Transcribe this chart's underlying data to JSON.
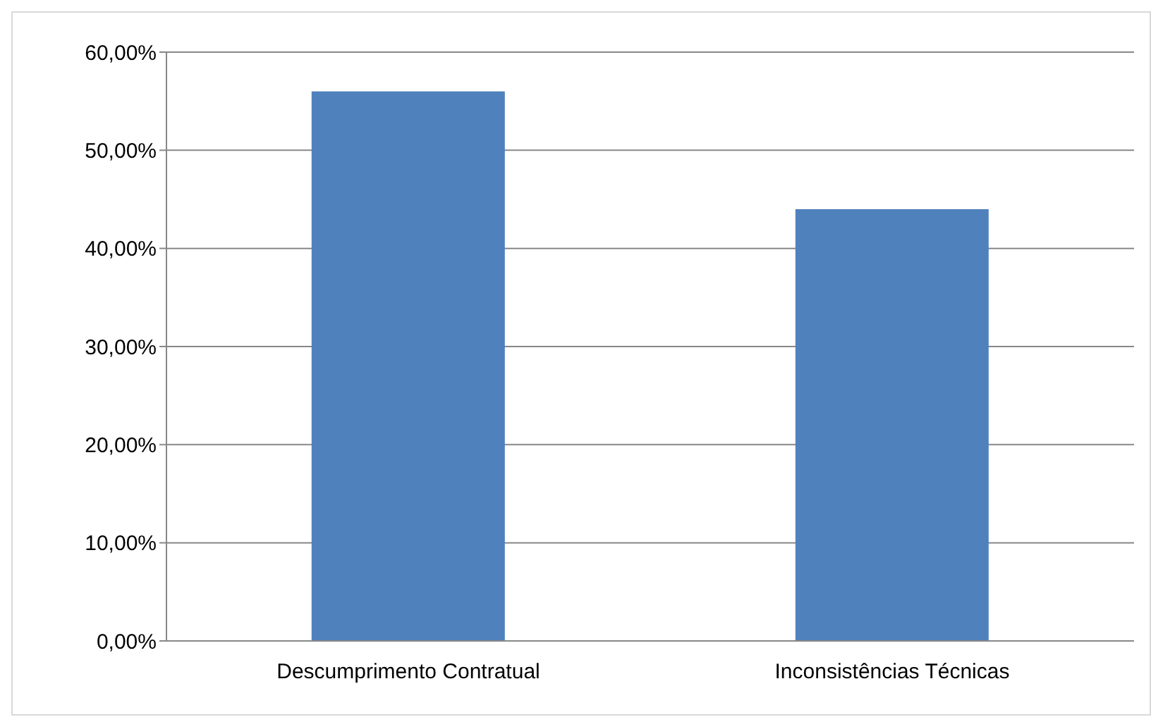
{
  "chart_data": {
    "type": "bar",
    "categories": [
      "Descumprimento Contratual",
      "Inconsistências Técnicas"
    ],
    "values": [
      56,
      44
    ],
    "color": "#4f81bd",
    "ylim": [
      0,
      60
    ],
    "yticks": [
      {
        "value": 0,
        "label": "0,00%"
      },
      {
        "value": 10,
        "label": "10,00%"
      },
      {
        "value": 20,
        "label": "20,00%"
      },
      {
        "value": 30,
        "label": "30,00%"
      },
      {
        "value": 40,
        "label": "40,00%"
      },
      {
        "value": 50,
        "label": "50,00%"
      },
      {
        "value": 60,
        "label": "60,00%"
      }
    ],
    "grid": "y"
  }
}
